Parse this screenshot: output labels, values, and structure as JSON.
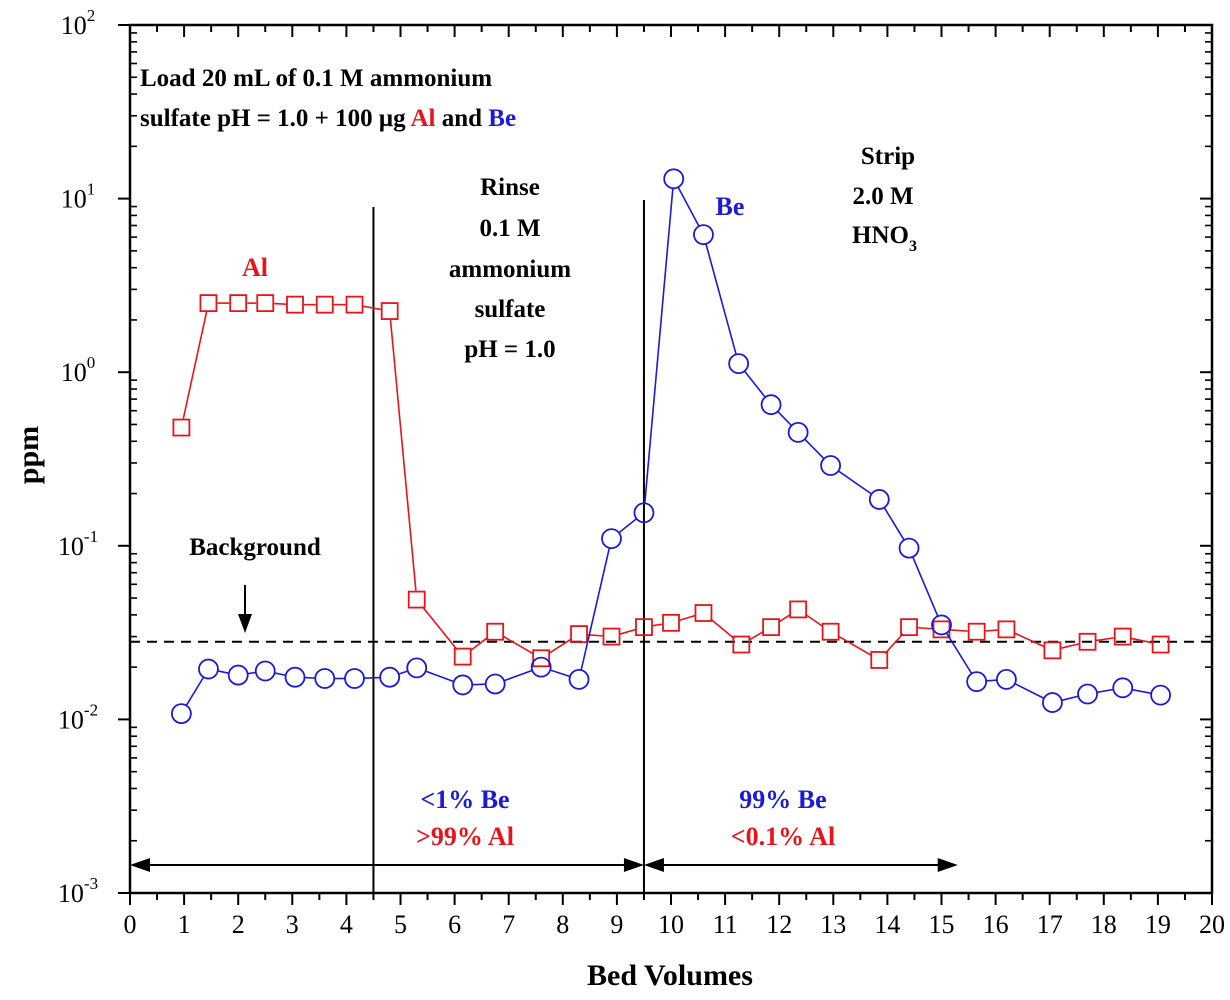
{
  "chart_data": {
    "type": "line",
    "xlabel": "Bed Volumes",
    "ylabel": "ppm",
    "xlim": [
      0,
      20
    ],
    "ylim": [
      0.001,
      100
    ],
    "yscale": "log",
    "x_ticks": [
      "0",
      "1",
      "2",
      "3",
      "4",
      "5",
      "6",
      "7",
      "8",
      "9",
      "10",
      "11",
      "12",
      "13",
      "14",
      "15",
      "16",
      "17",
      "18",
      "19",
      "20"
    ],
    "y_ticks": [
      {
        "base": "10",
        "exp": "-3",
        "value": 0.001
      },
      {
        "base": "10",
        "exp": "-2",
        "value": 0.01
      },
      {
        "base": "10",
        "exp": "-1",
        "value": 0.1
      },
      {
        "base": "10",
        "exp": "0",
        "value": 1
      },
      {
        "base": "10",
        "exp": "1",
        "value": 10
      },
      {
        "base": "10",
        "exp": "2",
        "value": 100
      }
    ],
    "series": [
      {
        "name": "Al",
        "color": "#e8141a",
        "marker": "square",
        "x": [
          0.95,
          1.45,
          2.0,
          2.5,
          3.05,
          3.6,
          4.15,
          4.8,
          5.3,
          6.15,
          6.75,
          7.6,
          8.3,
          8.9,
          9.5,
          10.0,
          10.6,
          11.3,
          11.85,
          12.35,
          12.95,
          13.85,
          14.4,
          15.0,
          15.65,
          16.2,
          17.05,
          17.7,
          18.35,
          19.05
        ],
        "y": [
          0.48,
          2.5,
          2.5,
          2.5,
          2.45,
          2.45,
          2.45,
          2.25,
          0.049,
          0.023,
          0.032,
          0.0225,
          0.031,
          0.03,
          0.034,
          0.036,
          0.041,
          0.027,
          0.034,
          0.043,
          0.032,
          0.022,
          0.034,
          0.033,
          0.032,
          0.033,
          0.025,
          0.028,
          0.03,
          0.027
        ]
      },
      {
        "name": "Be",
        "color": "#1a1ad8",
        "marker": "circle",
        "x": [
          0.95,
          1.45,
          2.0,
          2.5,
          3.05,
          3.6,
          4.15,
          4.8,
          5.3,
          6.15,
          6.75,
          7.6,
          8.3,
          8.9,
          9.5,
          10.05,
          10.6,
          11.25,
          11.85,
          12.35,
          12.95,
          13.85,
          14.4,
          15.0,
          15.65,
          16.2,
          17.05,
          17.7,
          18.35,
          19.05
        ],
        "y": [
          0.0108,
          0.0195,
          0.018,
          0.019,
          0.0175,
          0.0172,
          0.0172,
          0.0175,
          0.0198,
          0.0158,
          0.016,
          0.02,
          0.017,
          0.11,
          0.155,
          13.0,
          6.2,
          1.12,
          0.65,
          0.45,
          0.29,
          0.185,
          0.097,
          0.035,
          0.0165,
          0.017,
          0.0125,
          0.014,
          0.0152,
          0.0138
        ]
      }
    ],
    "background_level": 0.028,
    "dividers_x": [
      4.5,
      9.5
    ],
    "annotations": {
      "load_line1": "Load 20 mL of 0.1 M ammonium",
      "load_line2_a": "sulfate pH = 1.0 + 100 μg ",
      "load_line2_al": "Al",
      "load_line2_b": " and ",
      "load_line2_be": "Be",
      "al_label": "Al",
      "be_label": "Be",
      "rinse": [
        "Rinse",
        "0.1 M",
        "ammonium",
        "sulfate",
        "pH = 1.0"
      ],
      "strip1": "Strip",
      "strip2": "2.0 M",
      "strip3_main": "HNO",
      "strip3_sub": "3",
      "background": "Background",
      "left_be": "<1% Be",
      "left_al": ">99% Al",
      "right_be": "99% Be",
      "right_al": "<0.1% Al"
    },
    "colors": {
      "al": "#e8141a",
      "be": "#1a1ad8",
      "text": "#000000"
    }
  }
}
